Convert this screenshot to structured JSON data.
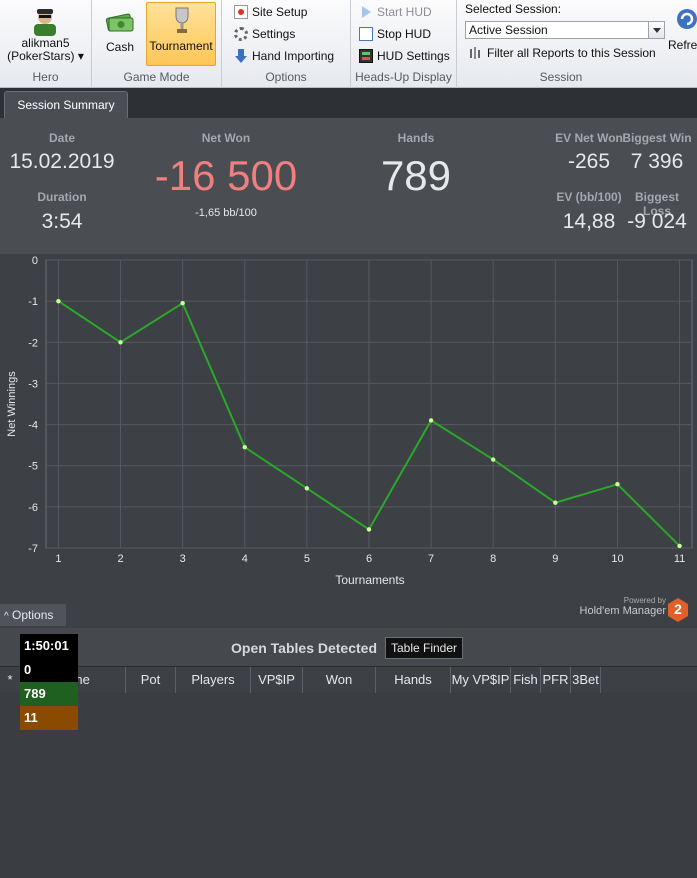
{
  "ribbon": {
    "hero": {
      "name": "alikman5",
      "site": "(PokerStars)",
      "dropdown_glyph": "▾",
      "label": "Hero"
    },
    "game_mode": {
      "cash_label": "Cash",
      "tournament_label": "Tournament",
      "label": "Game Mode"
    },
    "options": {
      "site_setup": "Site Setup",
      "settings": "Settings",
      "hand_importing": "Hand Importing",
      "label": "Options"
    },
    "hud": {
      "start": "Start HUD",
      "stop": "Stop HUD",
      "settings": "HUD Settings",
      "label": "Heads-Up Display"
    },
    "session": {
      "heading": "Selected Session:",
      "selected": "Active Session",
      "filter": "Filter all Reports to this Session",
      "label": "Session"
    },
    "refresh_label": "Refres"
  },
  "tab": {
    "label": "Session Summary"
  },
  "summary": {
    "date_label": "Date",
    "date": "15.02.2019",
    "duration_label": "Duration",
    "duration": "3:54",
    "net_won_label": "Net Won",
    "net_won": "-16 500",
    "net_won_sub": "-1,65 bb/100",
    "hands_label": "Hands",
    "hands": "789",
    "ev_net_won_label": "EV Net Won",
    "ev_net_won": "-265",
    "biggest_win_label": "Biggest Win",
    "biggest_win": "7 396",
    "ev_bb_label": "EV (bb/100)",
    "ev_bb": "14,88",
    "biggest_loss_label": "Biggest Loss",
    "biggest_loss": "-9 024"
  },
  "chart_data": {
    "type": "line",
    "xlabel": "Tournaments",
    "ylabel": "Net Winnings",
    "x": [
      1,
      2,
      3,
      4,
      5,
      6,
      7,
      8,
      9,
      10,
      11
    ],
    "series": [
      {
        "values": [
          -1.0,
          -2.0,
          -1.05,
          -4.55,
          -5.55,
          -6.55,
          -3.9,
          -4.85,
          -5.9,
          -5.45,
          -6.95
        ]
      }
    ],
    "xlim": [
      0.8,
      11.2
    ],
    "ylim": [
      -7,
      0
    ],
    "yticks": [
      0,
      -1,
      -2,
      -3,
      -4,
      -5,
      -6,
      -7
    ],
    "grid": true,
    "line_color": "#2aa82a",
    "point_color": "#c8ff9a"
  },
  "options_tab": {
    "label": "Options",
    "glyph": "^"
  },
  "branding": {
    "powered": "Powered by",
    "name": "Hold'em Manager",
    "logo_glyph": "2"
  },
  "open_tables": {
    "title": "Open Tables Detected",
    "finder_label": "Table Finder",
    "columns": [
      "*",
      "Name",
      "Pot",
      "Players",
      "VP$IP",
      "Won",
      "Hands",
      "My VP$IP",
      "Fish",
      "PFR",
      "3Bet"
    ],
    "hud_overlay": [
      {
        "value": "1:50:01",
        "color": "#000000"
      },
      {
        "value": "0",
        "color": "#000000"
      },
      {
        "value": "789",
        "color": "#1f5f1f"
      },
      {
        "value": "11",
        "color": "#8a4a00"
      }
    ]
  },
  "colors": {
    "net_won": "#f07f7f",
    "active_button": "#ffc657"
  }
}
